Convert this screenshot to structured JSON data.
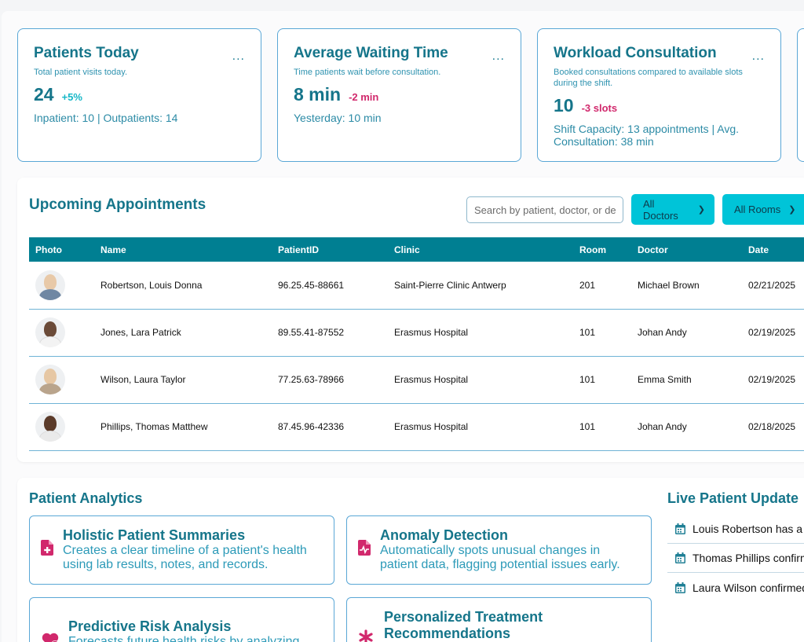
{
  "stats": [
    {
      "title": "Patients Today",
      "subtitle": "Total patient visits today.",
      "value": "24",
      "delta": "+5%",
      "detail": "Inpatient: 10 | Outpatients: 14"
    },
    {
      "title": "Average Waiting Time",
      "subtitle": "Time patients wait before consultation.",
      "value": "8 min",
      "delta": "-2 min",
      "detail": "Yesterday: 10 min"
    },
    {
      "title": "Workload Consultation",
      "subtitle": "Booked consultations compared to available slots during the shift.",
      "value": "10",
      "delta": "-3 slots",
      "detail": "Shift Capacity: 13 appointments | Avg. Consultation: 38 min"
    }
  ],
  "more_label": "...",
  "appointments": {
    "title": "Upcoming Appointments",
    "search_placeholder": "Search by patient, doctor, or de",
    "filter_doctors": "All Doctors",
    "filter_rooms": "All Rooms",
    "columns": [
      "Photo",
      "Name",
      "PatientID",
      "Clinic",
      "Room",
      "Doctor",
      "Date"
    ],
    "rows": [
      {
        "name": "Robertson, Louis Donna",
        "patient_id": "96.25.45-88661",
        "clinic": "Saint-Pierre Clinic Antwerp",
        "room": "201",
        "doctor": "Michael Brown",
        "date": "02/21/2025"
      },
      {
        "name": "Jones, Lara Patrick",
        "patient_id": "89.55.41-87552",
        "clinic": "Erasmus Hospital",
        "room": "101",
        "doctor": "Johan Andy",
        "date": "02/19/2025"
      },
      {
        "name": "Wilson, Laura Taylor",
        "patient_id": "77.25.63-78966",
        "clinic": "Erasmus Hospital",
        "room": "101",
        "doctor": "Emma Smith",
        "date": "02/19/2025"
      },
      {
        "name": "Phillips, Thomas Matthew",
        "patient_id": "87.45.96-42336",
        "clinic": "Erasmus Hospital",
        "room": "101",
        "doctor": "Johan Andy",
        "date": "02/18/2025"
      }
    ]
  },
  "analytics": {
    "title": "Patient Analytics",
    "features": [
      {
        "title": "Holistic Patient Summaries",
        "desc_line1": "Creates a clear timeline of a patient's health",
        "desc_line2": "using lab results, notes, and records."
      },
      {
        "title": "Anomaly Detection",
        "desc_line1": "Automatically spots unusual changes in",
        "desc_line2": "patient data, flagging potential issues early."
      },
      {
        "title": "Predictive Risk Analysis",
        "desc_line1": "Forecasts future health risks by analyzing",
        "desc_line2": ""
      },
      {
        "title_line1": "Personalized Treatment",
        "title_line2": "Recommendations"
      }
    ]
  },
  "live_updates": {
    "title": "Live Patient Update",
    "items": [
      "Louis Robertson has a",
      "Thomas Phillips confirm",
      "Laura Wilson confirmed"
    ]
  },
  "colors": {
    "primary": "#15758a",
    "accent": "#00c4d8",
    "table_header": "#007f92",
    "negative": "#d1286c",
    "positive": "#15b7c7",
    "icon_pink": "#d1286c"
  }
}
